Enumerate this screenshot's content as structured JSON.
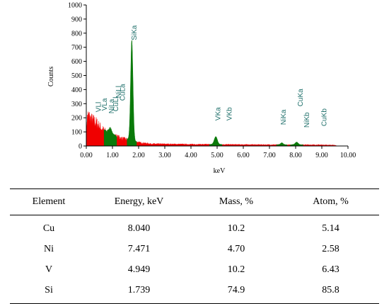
{
  "chart_data": {
    "type": "area",
    "xlabel": "keV",
    "ylabel": "Counts",
    "xlim": [
      0,
      10
    ],
    "ylim": [
      0,
      1000
    ],
    "x_ticks": [
      "0.00",
      "1.00",
      "2.00",
      "3.00",
      "4.00",
      "5.00",
      "6.00",
      "7.00",
      "8.00",
      "9.00",
      "10.00"
    ],
    "y_ticks": [
      "0",
      "100",
      "200",
      "300",
      "400",
      "500",
      "600",
      "700",
      "800",
      "900",
      "1000"
    ],
    "grid": false,
    "colors": {
      "background": "#f00000",
      "peaks": "#0a7a0a",
      "labels": "#1e6f6a"
    },
    "background": {
      "x": [
        0.0,
        0.05,
        0.1,
        0.15,
        0.2,
        0.3,
        0.4,
        0.5,
        0.6,
        0.7,
        0.8,
        0.9,
        1.0,
        1.1,
        1.2,
        1.3,
        1.4,
        1.5,
        1.6,
        1.7,
        1.8,
        1.9,
        2.0,
        2.5,
        3.0,
        4.0,
        5.0,
        6.0,
        7.0,
        8.0,
        9.0,
        9.5,
        9.6
      ],
      "y": [
        120,
        215,
        210,
        195,
        185,
        175,
        160,
        140,
        120,
        105,
        95,
        88,
        75,
        70,
        63,
        58,
        52,
        48,
        45,
        45,
        40,
        30,
        25,
        15,
        14,
        12,
        11,
        10,
        9,
        9,
        8,
        6,
        0
      ]
    },
    "peaks": [
      {
        "center": 0.92,
        "height": 38,
        "width": 0.06
      },
      {
        "center": 1.739,
        "height": 705,
        "width": 0.045
      },
      {
        "center": 4.949,
        "height": 55,
        "width": 0.06
      },
      {
        "center": 7.471,
        "height": 14,
        "width": 0.05
      },
      {
        "center": 8.04,
        "height": 18,
        "width": 0.06
      }
    ],
    "annotations": [
      {
        "text": "VLl",
        "x": 0.55,
        "y": 240
      },
      {
        "text": "VLa",
        "x": 0.78,
        "y": 250
      },
      {
        "text": "NiLa",
        "x": 1.05,
        "y": 230
      },
      {
        "text": "CuLl",
        "x": 1.22,
        "y": 245
      },
      {
        "text": "NiLl",
        "x": 1.33,
        "y": 340
      },
      {
        "text": "CuLa",
        "x": 1.47,
        "y": 320
      },
      {
        "text": "SiKa",
        "x": 1.92,
        "y": 750
      },
      {
        "text": "VKa",
        "x": 5.12,
        "y": 180
      },
      {
        "text": "VKb",
        "x": 5.55,
        "y": 180
      },
      {
        "text": "NiKa",
        "x": 7.62,
        "y": 150
      },
      {
        "text": "CuKa",
        "x": 8.27,
        "y": 280
      },
      {
        "text": "NiKb",
        "x": 8.52,
        "y": 130
      },
      {
        "text": "CuKb",
        "x": 9.17,
        "y": 140
      }
    ]
  },
  "table": {
    "headers": [
      "Element",
      "Energy, keV",
      "Mass, %",
      "Atom, %"
    ],
    "rows": [
      [
        "Cu",
        "8.040",
        "10.2",
        "5.14"
      ],
      [
        "Ni",
        "7.471",
        "4.70",
        "2.58"
      ],
      [
        "V",
        "4.949",
        "10.2",
        "6.43"
      ],
      [
        "Si",
        "1.739",
        "74.9",
        "85.8"
      ]
    ]
  }
}
